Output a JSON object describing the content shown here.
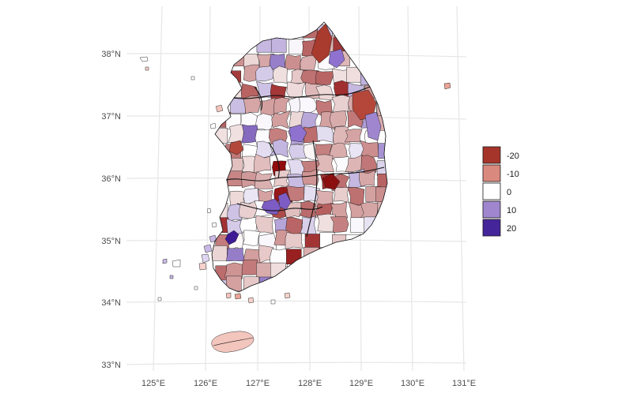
{
  "chart_data": {
    "type": "choropleth",
    "title": "",
    "projection": "geographic",
    "axes": {
      "lon_ticks": [
        "125°E",
        "126°E",
        "127°E",
        "128°E",
        "129°E",
        "130°E",
        "131°E"
      ],
      "lat_ticks": [
        "38°N",
        "37°N",
        "36°N",
        "35°N",
        "34°N",
        "33°N"
      ],
      "grid": true
    },
    "legend": {
      "placement": "right",
      "title": "",
      "entries": [
        {
          "label": "-20",
          "value": -20,
          "color": "#A5352B"
        },
        {
          "label": "-10",
          "value": -10,
          "color": "#D9897D"
        },
        {
          "label": "0",
          "value": 0,
          "color": "#FFFFFF"
        },
        {
          "label": "10",
          "value": 10,
          "color": "#9F86CF"
        },
        {
          "label": "20",
          "value": 20,
          "color": "#45259A"
        }
      ]
    },
    "color_scale": {
      "low": "#8B0000",
      "mid": "#FFFFFF",
      "high": "#3A0D98",
      "domain": [
        -25,
        25
      ]
    }
  }
}
